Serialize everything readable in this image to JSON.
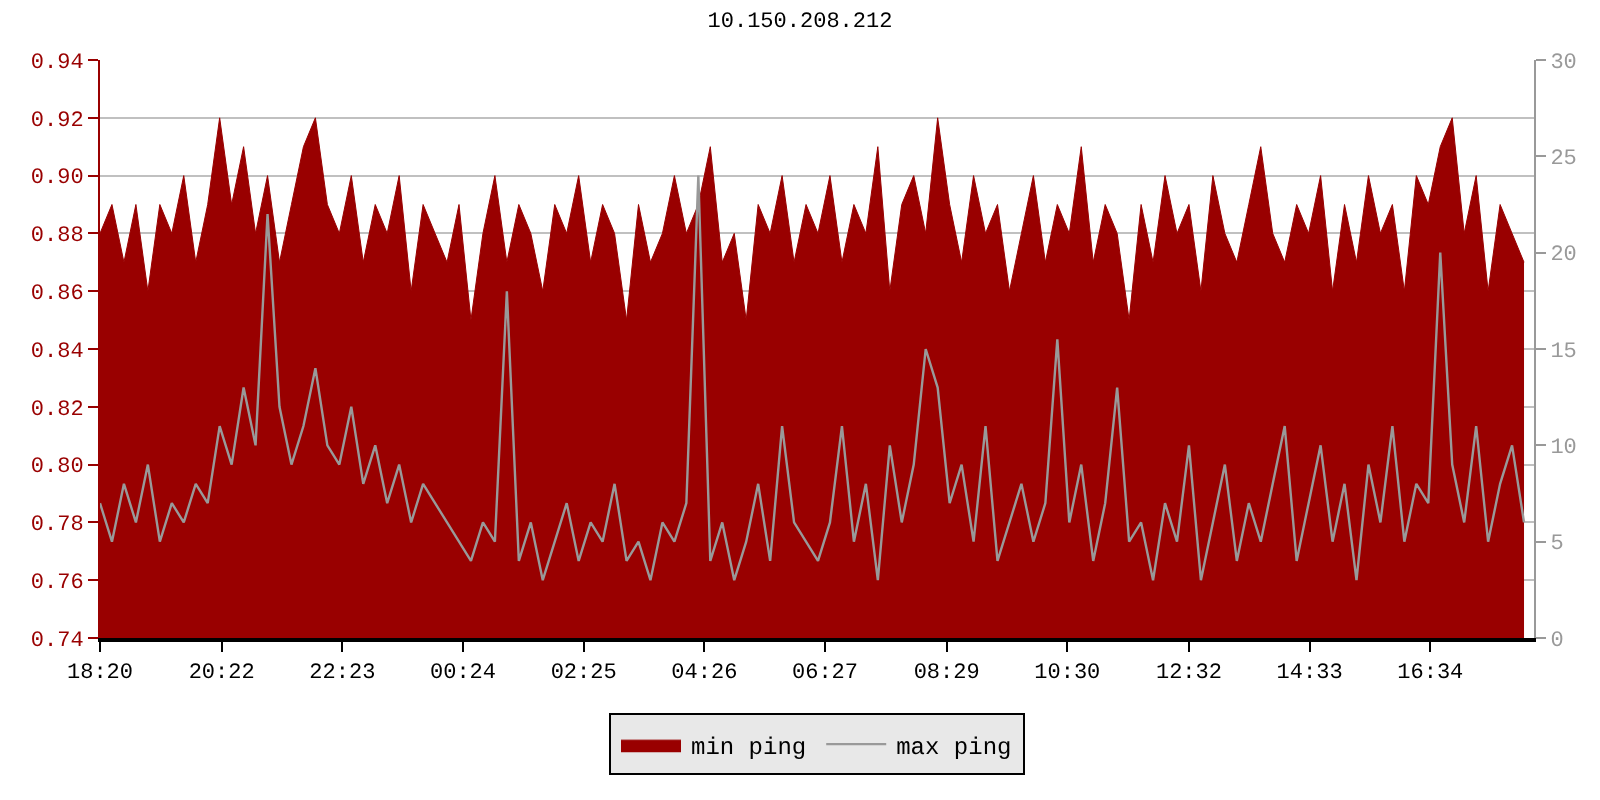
{
  "chart_data": {
    "type": "area",
    "title": "10.150.208.212",
    "x": [
      "--01-01T18:20",
      "--01-01T18:32",
      "--01-01T18:44",
      "--01-01T18:56",
      "--01-01T19:08",
      "--01-01T19:20",
      "--01-01T19:32",
      "--01-01T19:44",
      "--01-01T19:56",
      "--01-01T20:08",
      "--01-01T20:20",
      "--01-01T20:32",
      "--01-01T20:44",
      "--01-01T20:56",
      "--01-01T21:08",
      "--01-01T21:20",
      "--01-01T21:32",
      "--01-01T21:44",
      "--01-01T21:56",
      "--01-01T22:08",
      "--01-01T22:20",
      "--01-01T22:32",
      "--01-01T22:44",
      "--01-01T22:56",
      "--01-01T23:08",
      "--01-01T23:20",
      "--01-01T23:32",
      "--01-01T23:44",
      "--01-01T23:56",
      "--01-02T00:08",
      "--01-02T00:20",
      "--01-02T00:32",
      "--01-02T00:44",
      "--01-02T00:56",
      "--01-02T01:08",
      "--01-02T01:20",
      "--01-02T01:32",
      "--01-02T01:44",
      "--01-02T01:56",
      "--01-02T02:08",
      "--01-02T02:20",
      "--01-02T02:32",
      "--01-02T02:44",
      "--01-02T02:56",
      "--01-02T03:08",
      "--01-02T03:20",
      "--01-02T03:32",
      "--01-02T03:44",
      "--01-02T03:56",
      "--01-02T04:08",
      "--01-02T04:20",
      "--01-02T04:32",
      "--01-02T04:44",
      "--01-02T04:56",
      "--01-02T05:08",
      "--01-02T05:20",
      "--01-02T05:32",
      "--01-02T05:44",
      "--01-02T05:56",
      "--01-02T06:08",
      "--01-02T06:20",
      "--01-02T06:32",
      "--01-02T06:44",
      "--01-02T06:56",
      "--01-02T07:08",
      "--01-02T07:20",
      "--01-02T07:32",
      "--01-02T07:44",
      "--01-02T07:56",
      "--01-02T08:08",
      "--01-02T08:20",
      "--01-02T08:32",
      "--01-02T08:44",
      "--01-02T08:56",
      "--01-02T09:08",
      "--01-02T09:20",
      "--01-02T09:32",
      "--01-02T09:44",
      "--01-02T09:56",
      "--01-02T10:08",
      "--01-02T10:20",
      "--01-02T10:32",
      "--01-02T10:44",
      "--01-02T10:56",
      "--01-02T11:08",
      "--01-02T11:20",
      "--01-02T11:32",
      "--01-02T11:44",
      "--01-02T11:56",
      "--01-02T12:08",
      "--01-02T12:20",
      "--01-02T12:32",
      "--01-02T12:44",
      "--01-02T12:56",
      "--01-02T13:08",
      "--01-02T13:20",
      "--01-02T13:32",
      "--01-02T13:44",
      "--01-02T13:56",
      "--01-02T14:08",
      "--01-02T14:20",
      "--01-02T14:32",
      "--01-02T14:44",
      "--01-02T14:56",
      "--01-02T15:08",
      "--01-02T15:20",
      "--01-02T15:32",
      "--01-02T15:44",
      "--01-02T15:56",
      "--01-02T16:08",
      "--01-02T16:20",
      "--01-02T16:32",
      "--01-02T16:44",
      "--01-02T16:56",
      "--01-02T17:08",
      "--01-02T17:20",
      "--01-02T17:32",
      "--01-02T17:44",
      "--01-02T17:56",
      "--01-02T18:08"
    ],
    "series": [
      {
        "name": "min ping",
        "color": "#990000",
        "values": [
          0.88,
          0.89,
          0.87,
          0.89,
          0.86,
          0.89,
          0.88,
          0.9,
          0.87,
          0.89,
          0.92,
          0.89,
          0.91,
          0.88,
          0.9,
          0.87,
          0.89,
          0.91,
          0.92,
          0.89,
          0.88,
          0.9,
          0.87,
          0.89,
          0.88,
          0.9,
          0.86,
          0.89,
          0.88,
          0.87,
          0.89,
          0.85,
          0.88,
          0.9,
          0.87,
          0.89,
          0.88,
          0.86,
          0.89,
          0.88,
          0.9,
          0.87,
          0.89,
          0.88,
          0.85,
          0.89,
          0.87,
          0.88,
          0.9,
          0.88,
          0.89,
          0.91,
          0.87,
          0.88,
          0.85,
          0.89,
          0.88,
          0.9,
          0.87,
          0.89,
          0.88,
          0.9,
          0.87,
          0.89,
          0.88,
          0.91,
          0.86,
          0.89,
          0.9,
          0.88,
          0.92,
          0.89,
          0.87,
          0.9,
          0.88,
          0.89,
          0.86,
          0.88,
          0.9,
          0.87,
          0.89,
          0.88,
          0.91,
          0.87,
          0.89,
          0.88,
          0.85,
          0.89,
          0.87,
          0.9,
          0.88,
          0.89,
          0.86,
          0.9,
          0.88,
          0.87,
          0.89,
          0.91,
          0.88,
          0.87,
          0.89,
          0.88,
          0.9,
          0.86,
          0.89,
          0.87,
          0.9,
          0.88,
          0.89,
          0.86,
          0.9,
          0.89,
          0.91,
          0.92,
          0.88,
          0.9,
          0.86,
          0.89,
          0.88,
          0.87
        ]
      },
      {
        "name": "max ping",
        "type": "line",
        "axis": "y2",
        "color": "#999999",
        "values": [
          7,
          5,
          8,
          6,
          9,
          5,
          7,
          6,
          8,
          7,
          11,
          9,
          13,
          10,
          22,
          12,
          9,
          11,
          14,
          10,
          9,
          12,
          8,
          10,
          7,
          9,
          6,
          8,
          7,
          6,
          5,
          4,
          6,
          5,
          18,
          4,
          6,
          3,
          5,
          7,
          4,
          6,
          5,
          8,
          4,
          5,
          3,
          6,
          5,
          7,
          24,
          4,
          6,
          3,
          5,
          8,
          4,
          11,
          6,
          5,
          4,
          6,
          11,
          5,
          8,
          3,
          10,
          6,
          9,
          15,
          13,
          7,
          9,
          5,
          11,
          4,
          6,
          8,
          5,
          7,
          15.5,
          6,
          9,
          4,
          7,
          13,
          5,
          6,
          3,
          7,
          5,
          10,
          3,
          6,
          9,
          4,
          7,
          5,
          8,
          11,
          4,
          7,
          10,
          5,
          8,
          3,
          9,
          6,
          11,
          5,
          8,
          7,
          20,
          9,
          6,
          11,
          5,
          8,
          10,
          6
        ]
      }
    ],
    "xlim": [
      "--01-01T18:20",
      "--01-02T18:18"
    ],
    "xticks": [
      {
        "value": "--01-01T18:20",
        "label": "18:20"
      },
      {
        "value": "--01-01T20:22",
        "label": "20:22"
      },
      {
        "value": "--01-01T22:23",
        "label": "22:23"
      },
      {
        "value": "--01-02T00:24",
        "label": "00:24"
      },
      {
        "value": "--01-02T02:25",
        "label": "02:25"
      },
      {
        "value": "--01-02T04:26",
        "label": "04:26"
      },
      {
        "value": "--01-02T06:27",
        "label": "06:27"
      },
      {
        "value": "--01-02T08:29",
        "label": "08:29"
      },
      {
        "value": "--01-02T10:30",
        "label": "10:30"
      },
      {
        "value": "--01-02T12:32",
        "label": "12:32"
      },
      {
        "value": "--01-02T14:33",
        "label": "14:33"
      },
      {
        "value": "--01-02T16:34",
        "label": "16:34"
      }
    ],
    "ylim": [
      0.74,
      0.94
    ],
    "yticks": [
      {
        "value": 0.74,
        "label": "0.74"
      },
      {
        "value": 0.76,
        "label": "0.76"
      },
      {
        "value": 0.78,
        "label": "0.78"
      },
      {
        "value": 0.8,
        "label": "0.80"
      },
      {
        "value": 0.82,
        "label": "0.82"
      },
      {
        "value": 0.84,
        "label": "0.84"
      },
      {
        "value": 0.86,
        "label": "0.86"
      },
      {
        "value": 0.88,
        "label": "0.88"
      },
      {
        "value": 0.9,
        "label": "0.90"
      },
      {
        "value": 0.92,
        "label": "0.92"
      },
      {
        "value": 0.94,
        "label": "0.94"
      }
    ],
    "y2lim": [
      0,
      30
    ],
    "y2ticks": [
      0,
      5,
      10,
      15,
      20,
      25,
      30
    ],
    "grid": "y",
    "legend": "bottom"
  }
}
